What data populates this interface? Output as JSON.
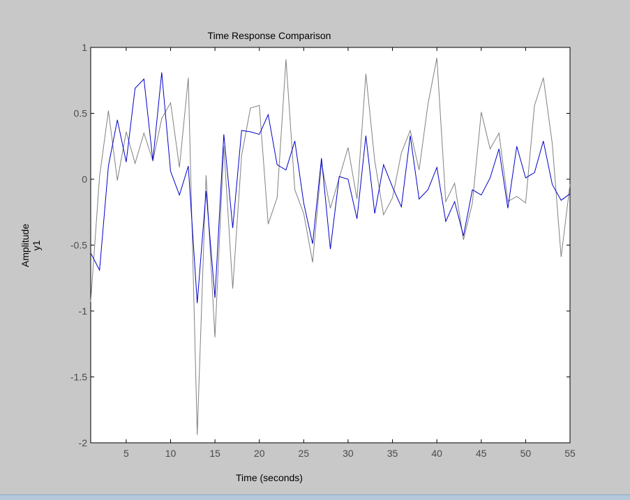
{
  "chart_data": {
    "type": "line",
    "title": "Time Response Comparison",
    "xlabel": "Time (seconds)",
    "ylabel": "Amplitude",
    "output_label": "y1",
    "xlim": [
      1,
      55
    ],
    "ylim": [
      -2,
      1
    ],
    "x_ticks": [
      5,
      10,
      15,
      20,
      25,
      30,
      35,
      40,
      45,
      50,
      55
    ],
    "y_ticks": [
      1,
      0.5,
      0,
      -0.5,
      -1,
      -1.5,
      -2
    ],
    "x": [
      1,
      2,
      3,
      4,
      5,
      6,
      7,
      8,
      9,
      10,
      11,
      12,
      13,
      14,
      15,
      16,
      17,
      18,
      19,
      20,
      21,
      22,
      23,
      24,
      25,
      26,
      27,
      28,
      29,
      30,
      31,
      32,
      33,
      34,
      35,
      36,
      37,
      38,
      39,
      40,
      41,
      42,
      43,
      44,
      45,
      46,
      47,
      48,
      49,
      50,
      51,
      52,
      53,
      54,
      55
    ],
    "series": [
      {
        "color": "#808080",
        "values": [
          -0.93,
          0.02,
          0.52,
          -0.01,
          0.36,
          0.12,
          0.35,
          0.14,
          0.46,
          0.58,
          0.09,
          0.77,
          -1.94,
          0.03,
          -1.2,
          0.25,
          -0.83,
          0.18,
          0.54,
          0.56,
          -0.34,
          -0.14,
          0.91,
          -0.08,
          -0.26,
          -0.63,
          0.12,
          -0.22,
          0.01,
          0.24,
          -0.15,
          0.8,
          0.14,
          -0.27,
          -0.14,
          0.2,
          0.37,
          0.07,
          0.57,
          0.92,
          -0.17,
          -0.03,
          -0.46,
          -0.18,
          0.51,
          0.23,
          0.35,
          -0.17,
          -0.13,
          -0.18,
          0.56,
          0.77,
          0.27,
          -0.59,
          -0.04
        ]
      },
      {
        "color": "#0000c8",
        "values": [
          -0.56,
          -0.69,
          0.1,
          0.45,
          0.13,
          0.69,
          0.76,
          0.14,
          0.81,
          0.06,
          -0.12,
          0.1,
          -0.94,
          -0.09,
          -0.9,
          0.34,
          -0.37,
          0.37,
          0.36,
          0.34,
          0.49,
          0.11,
          0.07,
          0.29,
          -0.18,
          -0.49,
          0.16,
          -0.53,
          0.02,
          0.0,
          -0.3,
          0.33,
          -0.26,
          0.11,
          -0.06,
          -0.21,
          0.33,
          -0.15,
          -0.08,
          0.09,
          -0.32,
          -0.17,
          -0.43,
          -0.08,
          -0.12,
          0.01,
          0.23,
          -0.22,
          0.25,
          0.01,
          0.05,
          0.29,
          -0.04,
          -0.16,
          -0.11
        ]
      }
    ]
  }
}
